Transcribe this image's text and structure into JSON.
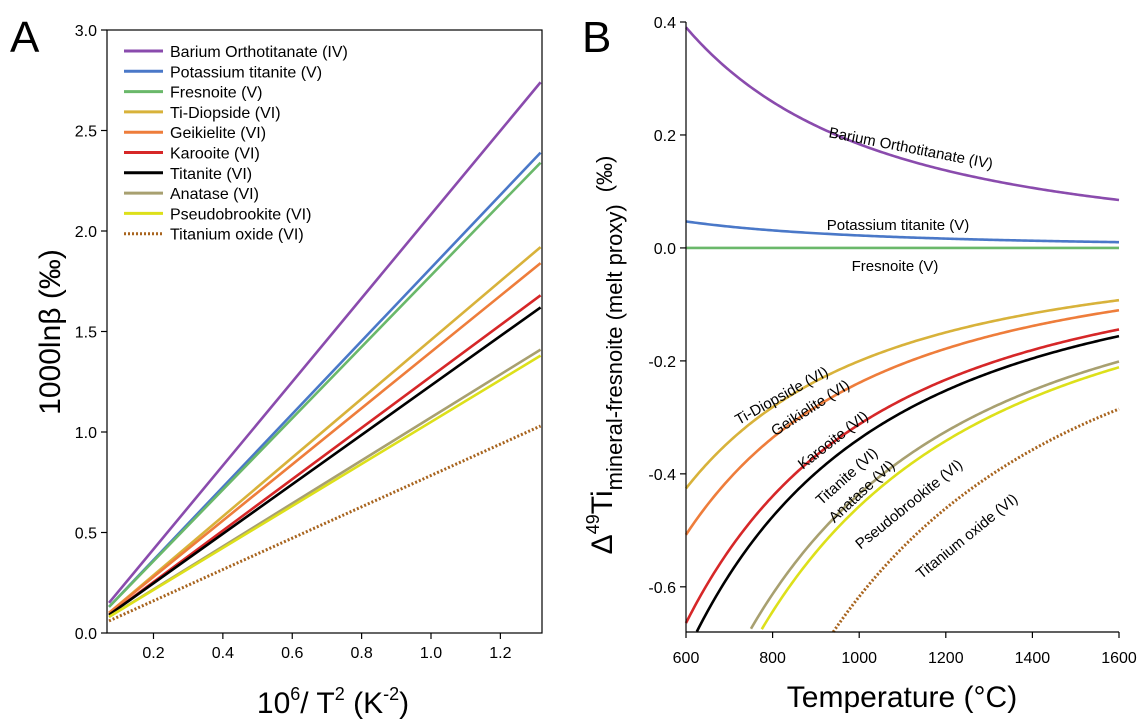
{
  "chart_data": [
    {
      "panel": "A",
      "type": "line",
      "xlabel_base": "10",
      "xlabel_exp": "6",
      "xlabel_mid": "/ T",
      "xlabel_exp2": "2",
      "xlabel_unit": " (K",
      "xlabel_unit_exp": "-2",
      "xlabel_close": ")",
      "ylabel": "1000lnβ (‰)",
      "xlim": [
        0.066,
        1.32
      ],
      "ylim": [
        0,
        3.0
      ],
      "xticks": [
        0.2,
        0.4,
        0.6,
        0.8,
        1.0,
        1.2
      ],
      "xtick_labels": [
        "0.2",
        "0.4",
        "0.6",
        "0.8",
        "1.0",
        "1.2"
      ],
      "yticks": [
        0,
        0.5,
        1.0,
        1.5,
        2.0,
        2.5,
        3.0
      ],
      "ytick_labels": [
        "0.0",
        "0.5",
        "1.0",
        "1.5",
        "2.0",
        "2.5",
        "3.0"
      ],
      "legend_position": "top-left",
      "x": [
        0.0718,
        1.3159
      ],
      "series": [
        {
          "name": "Barium Orthotitanate (IV)",
          "color": "#8a4bad",
          "dashed": false,
          "values": [
            0.15,
            2.74
          ]
        },
        {
          "name": "Potassium titanite (V)",
          "color": "#4a78c8",
          "dashed": false,
          "values": [
            0.13,
            2.39
          ]
        },
        {
          "name": "Fresnoite (V)",
          "color": "#6ab86a",
          "dashed": false,
          "values": [
            0.13,
            2.34
          ]
        },
        {
          "name": "Ti-Diopside (VI)",
          "color": "#d8b23a",
          "dashed": false,
          "values": [
            0.1,
            1.92
          ]
        },
        {
          "name": "Geikielite (VI)",
          "color": "#ee7d3b",
          "dashed": false,
          "values": [
            0.1,
            1.84
          ]
        },
        {
          "name": "Karooite (VI)",
          "color": "#d62728",
          "dashed": false,
          "values": [
            0.09,
            1.68
          ]
        },
        {
          "name": "Titanite (VI)",
          "color": "#000000",
          "dashed": false,
          "values": [
            0.09,
            1.62
          ]
        },
        {
          "name": "Anatase (VI)",
          "color": "#a8a070",
          "dashed": false,
          "values": [
            0.08,
            1.41
          ]
        },
        {
          "name": "Pseudobrookite (VI)",
          "color": "#dde01a",
          "dashed": false,
          "values": [
            0.08,
            1.38
          ]
        },
        {
          "name": "Titanium oxide (VI)",
          "color": "#a8641e",
          "dashed": true,
          "values": [
            0.06,
            1.03
          ]
        }
      ]
    },
    {
      "panel": "B",
      "type": "line",
      "xlabel": "Temperature (°C)",
      "ylabel_delta": "Δ",
      "ylabel_sup": "49",
      "ylabel_ti": "Ti",
      "ylabel_sub": "mineral-fresnoite (melt proxy)",
      "ylabel_unit": "(‰)",
      "xlim": [
        600,
        1600
      ],
      "ylim": [
        -0.68,
        0.4
      ],
      "xticks": [
        600,
        800,
        1000,
        1200,
        1400,
        1600
      ],
      "xtick_labels": [
        "600",
        "800",
        "1000",
        "1200",
        "1400",
        "1600"
      ],
      "yticks": [
        -0.6,
        -0.4,
        -0.2,
        0.0,
        0.2,
        0.4
      ],
      "ytick_labels": [
        "-0.6",
        "-0.4",
        "-0.2",
        "0.0",
        "0.2",
        "0.4"
      ],
      "curve_labels": [
        "Barium Orthotitanate (IV)",
        "Potassium titanite (V)",
        "Fresnoite (V)",
        "Ti-Diopside (VI)",
        "Geikielite (VI)",
        "Karooite (VI)",
        "Titanite (VI)",
        "Anatase (VI)",
        "Pseudobrookite (VI)",
        "Titanium oxide (VI)"
      ],
      "series": [
        {
          "name": "Barium Orthotitanate (IV)",
          "color": "#8a4bad",
          "dashed": false,
          "coef": 0.3906
        },
        {
          "name": "Potassium titanite (V)",
          "color": "#4a78c8",
          "dashed": false,
          "coef": 0.0469
        },
        {
          "name": "Fresnoite (V)",
          "color": "#6ab86a",
          "dashed": false,
          "coef": 0.0
        },
        {
          "name": "Ti-Diopside (VI)",
          "color": "#d8b23a",
          "dashed": false,
          "coef": -0.4258
        },
        {
          "name": "Geikielite (VI)",
          "color": "#ee7d3b",
          "dashed": false,
          "coef": -0.5078
        },
        {
          "name": "Karooite (VI)",
          "color": "#d62728",
          "dashed": false,
          "coef": -0.6641
        },
        {
          "name": "Titanite (VI)",
          "color": "#000000",
          "dashed": false,
          "coef": -0.7188
        },
        {
          "name": "Anatase (VI)",
          "color": "#a8a070",
          "dashed": false,
          "coef": -0.9258
        },
        {
          "name": "Pseudobrookite (VI)",
          "color": "#dde01a",
          "dashed": false,
          "coef": -0.9727
        },
        {
          "name": "Titanium oxide (VI)",
          "color": "#a8641e",
          "dashed": true,
          "coef": -1.3125
        }
      ]
    }
  ],
  "panels": {
    "a": "A",
    "b": "B"
  }
}
